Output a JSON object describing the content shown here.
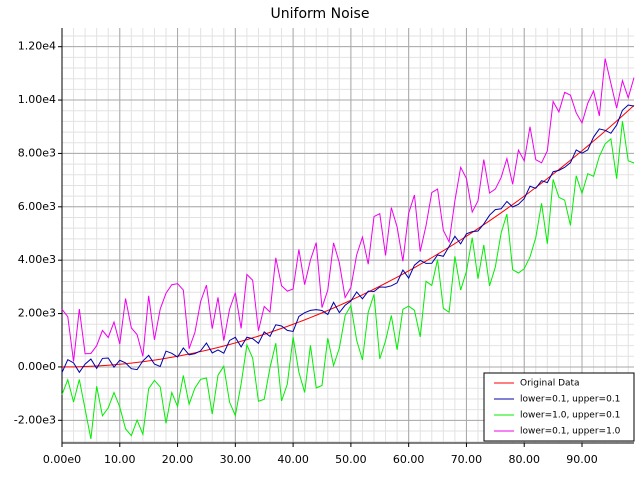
{
  "chart_data": {
    "type": "line",
    "title": "Uniform Noise",
    "x": [
      0,
      1,
      2,
      3,
      4,
      5,
      6,
      7,
      8,
      9,
      10,
      11,
      12,
      13,
      14,
      15,
      16,
      17,
      18,
      19,
      20,
      21,
      22,
      23,
      24,
      25,
      26,
      27,
      28,
      29,
      30,
      31,
      32,
      33,
      34,
      35,
      36,
      37,
      38,
      39,
      40,
      41,
      42,
      43,
      44,
      45,
      46,
      47,
      48,
      49,
      50,
      51,
      52,
      53,
      54,
      55,
      56,
      57,
      58,
      59,
      60,
      61,
      62,
      63,
      64,
      65,
      66,
      67,
      68,
      69,
      70,
      71,
      72,
      73,
      74,
      75,
      76,
      77,
      78,
      79,
      80,
      81,
      82,
      83,
      84,
      85,
      86,
      87,
      88,
      89,
      90,
      91,
      92,
      93,
      94,
      95,
      96,
      97,
      98,
      99
    ],
    "series": [
      {
        "name": "Original Data",
        "color": "#ff0000",
        "values": [
          0,
          1,
          4,
          9,
          16,
          25,
          36,
          49,
          64,
          81,
          100,
          121,
          144,
          169,
          196,
          225,
          256,
          289,
          324,
          361,
          400,
          441,
          484,
          529,
          576,
          625,
          676,
          729,
          784,
          841,
          900,
          961,
          1024,
          1089,
          1156,
          1225,
          1296,
          1369,
          1444,
          1521,
          1600,
          1681,
          1764,
          1849,
          1936,
          2025,
          2116,
          2209,
          2304,
          2401,
          2500,
          2601,
          2704,
          2809,
          2916,
          3025,
          3136,
          3249,
          3364,
          3481,
          3600,
          3721,
          3844,
          3969,
          4096,
          4225,
          4356,
          4489,
          4624,
          4761,
          4900,
          5041,
          5184,
          5329,
          5476,
          5625,
          5776,
          5929,
          6084,
          6241,
          6400,
          6561,
          6724,
          6889,
          7056,
          7225,
          7396,
          7569,
          7744,
          7921,
          8100,
          8281,
          8464,
          8649,
          8836,
          9025,
          9216,
          9409,
          9604,
          9801
        ]
      },
      {
        "name": "lower=0.1, upper=0.1",
        "color": "#0000aa",
        "values": [
          -210,
          271,
          154,
          -201,
          106,
          295,
          -54,
          319,
          334,
          -9,
          250,
          151,
          -66,
          -101,
          226,
          435,
          106,
          19,
          594,
          511,
          370,
          711,
          454,
          499,
          606,
          895,
          526,
          639,
          514,
          991,
          1110,
          751,
          1114,
          1059,
          886,
          1315,
          1146,
          1579,
          1534,
          1371,
          1330,
          1891,
          2034,
          2119,
          2146,
          2115,
          1966,
          2419,
          2034,
          2311,
          2470,
          2811,
          2554,
          2839,
          2826,
          2995,
          2986,
          3039,
          3154,
          3631,
          3330,
          3811,
          3994,
          3879,
          3886,
          4195,
          4146,
          4519,
          4894,
          4611,
          4990,
          5071,
          5094,
          5359,
          5686,
          5895,
          5926,
          6199,
          5994,
          6091,
          6310,
          6771,
          6694,
          6979,
          6906,
          7315,
          7366,
          7479,
          7654,
          8131,
          8010,
          8131,
          8614,
          8919,
          8866,
          8755,
          9066,
          9619,
          9814,
          9771
        ]
      },
      {
        "name": "lower=1.0, upper=0.1",
        "color": "#00ee00",
        "values": [
          -1040,
          -479,
          -1316,
          -471,
          -1584,
          -2695,
          -724,
          -1831,
          -1536,
          -959,
          -1500,
          -2319,
          -2576,
          -1991,
          -2524,
          -815,
          -504,
          -751,
          -2116,
          -959,
          -1480,
          -319,
          -1396,
          -791,
          -464,
          -415,
          -1764,
          -311,
          24,
          -1319,
          -1820,
          -639,
          824,
          329,
          -1284,
          -1215,
          -24,
          889,
          -1276,
          -639,
          1120,
          -199,
          -956,
          809,
          -784,
          -695,
          1076,
          49,
          704,
          1921,
          2300,
          1001,
          264,
          2049,
          2716,
          305,
          976,
          1929,
          644,
          2161,
          2280,
          2121,
          1124,
          3209,
          3056,
          4025,
          2196,
          2049,
          4144,
          2881,
          3580,
          4841,
          3304,
          4569,
          3036,
          3745,
          5016,
          5729,
          3644,
          3521,
          3680,
          4121,
          4844,
          6129,
          4616,
          7025,
          6356,
          6249,
          5304,
          7161,
          6500,
          7241,
          7144,
          7889,
          8356,
          8545,
          7056,
          9209,
          7724,
          7641
        ]
      },
      {
        "name": "lower=0.1, upper=1.0",
        "color": "#ee00ee",
        "values": [
          2160,
          1881,
          204,
          2169,
          496,
          505,
          796,
          1369,
          1104,
          1681,
          860,
          2561,
          1464,
          1209,
          396,
          2665,
          1016,
          2169,
          2764,
          3081,
          3120,
          2881,
          684,
          1289,
          2456,
          3065,
          1436,
          2609,
          984,
          2161,
          2780,
          1441,
          3464,
          3249,
          1356,
          2265,
          2056,
          4089,
          3044,
          2841,
          2920,
          4401,
          3084,
          4009,
          4656,
          2225,
          2876,
          4649,
          3904,
          2601,
          2980,
          4201,
          4864,
          3849,
          5636,
          5745,
          4176,
          5969,
          5244,
          3961,
          5760,
          6441,
          4324,
          5289,
          6536,
          6665,
          5116,
          4689,
          6224,
          7481,
          7060,
          5801,
          6224,
          7769,
          6516,
          6665,
          7096,
          7809,
          6844,
          8121,
          7720,
          9001,
          7764,
          7649,
          8096,
          9945,
          9556,
          10289,
          10184,
          9521,
          9140,
          9881,
          10344,
          9409,
          11556,
          10625,
          9696,
          10729,
          10084,
          10841
        ]
      }
    ],
    "xlim": [
      0,
      99
    ],
    "xticks": [
      {
        "value": 0,
        "label": "0.00e0"
      },
      {
        "value": 10,
        "label": "10.00"
      },
      {
        "value": 20,
        "label": "20.00"
      },
      {
        "value": 30,
        "label": "30.00"
      },
      {
        "value": 40,
        "label": "40.00"
      },
      {
        "value": 50,
        "label": "50.00"
      },
      {
        "value": 60,
        "label": "60.00"
      },
      {
        "value": 70,
        "label": "70.00"
      },
      {
        "value": 80,
        "label": "80.00"
      },
      {
        "value": 90,
        "label": "90.00"
      }
    ],
    "ylim": [
      -2850,
      12700
    ],
    "yticks": [
      {
        "value": -2000,
        "label": "-2.00e3"
      },
      {
        "value": 0,
        "label": "0.00e0"
      },
      {
        "value": 2000,
        "label": "2.00e3"
      },
      {
        "value": 4000,
        "label": "4.00e3"
      },
      {
        "value": 6000,
        "label": "6.00e3"
      },
      {
        "value": 8000,
        "label": "8.00e3"
      },
      {
        "value": 10000,
        "label": "1.00e4"
      },
      {
        "value": 12000,
        "label": "1.20e4"
      }
    ],
    "grid": true,
    "legend": "lower right"
  }
}
